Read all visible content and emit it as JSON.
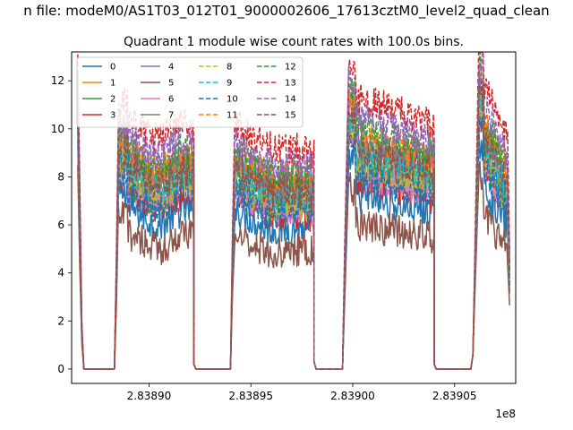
{
  "figure": {
    "suptitle": "n file: modeM0/AS1T03_012T01_9000002606_17613cztM0_level2_quad_clean",
    "title": "Quadrant 1 module wise count rates with 100.0s bins.",
    "offset_label": "1e8"
  },
  "chart_data": {
    "type": "line",
    "title": "Quadrant 1 module wise count rates with 100.0s bins.",
    "xlabel": "",
    "ylabel": "",
    "x_scale_factor": "1e8",
    "xlim": [
      2.838862,
      2.83908
    ],
    "ylim": [
      -0.6,
      13.2
    ],
    "xticks": [
      2.8389,
      2.83895,
      2.839,
      2.83905
    ],
    "xtick_labels": [
      "2.83890",
      "2.83895",
      "2.83900",
      "2.83905"
    ],
    "yticks": [
      0,
      2,
      4,
      6,
      8,
      10,
      12
    ],
    "ytick_labels": [
      "0",
      "2",
      "4",
      "6",
      "8",
      "10",
      "12"
    ],
    "grid": false,
    "legend_position": "top-left",
    "legend_columns": 4,
    "bin_seconds": 100.0,
    "segments": [
      {
        "start": 2.838865,
        "end": 2.838922
      },
      {
        "start": 2.838942,
        "end": 2.838981
      },
      {
        "start": 2.839002,
        "end": 2.83904
      },
      {
        "start": 2.839064,
        "end": 2.839076
      }
    ],
    "zero_gaps": [
      {
        "start": 2.838868,
        "end": 2.838883
      },
      {
        "start": 2.838922,
        "end": 2.838941
      },
      {
        "start": 2.838981,
        "end": 2.838996
      },
      {
        "start": 2.83904,
        "end": 2.839059
      }
    ],
    "series": [
      {
        "name": "0",
        "color": "#1f77b4",
        "dash": false,
        "level": 6.3
      },
      {
        "name": "1",
        "color": "#ff7f0e",
        "dash": false,
        "level": 8.2
      },
      {
        "name": "2",
        "color": "#2ca02c",
        "dash": false,
        "level": 7.3
      },
      {
        "name": "3",
        "color": "#d62728",
        "dash": false,
        "level": 7.0
      },
      {
        "name": "4",
        "color": "#9467bd",
        "dash": false,
        "level": 8.4
      },
      {
        "name": "5",
        "color": "#8c564b",
        "dash": false,
        "level": 5.3
      },
      {
        "name": "6",
        "color": "#e377c2",
        "dash": false,
        "level": 7.2
      },
      {
        "name": "7",
        "color": "#7f7f7f",
        "dash": false,
        "level": 7.8
      },
      {
        "name": "8",
        "color": "#bcbd22",
        "dash": true,
        "level": 7.4
      },
      {
        "name": "9",
        "color": "#17becf",
        "dash": true,
        "level": 7.8
      },
      {
        "name": "10",
        "color": "#1f77b4",
        "dash": true,
        "level": 7.0
      },
      {
        "name": "11",
        "color": "#ff7f0e",
        "dash": true,
        "level": 8.6
      },
      {
        "name": "12",
        "color": "#2ca02c",
        "dash": true,
        "level": 8.8
      },
      {
        "name": "13",
        "color": "#d62728",
        "dash": true,
        "level": 9.9
      },
      {
        "name": "14",
        "color": "#9467bd",
        "dash": true,
        "level": 9.2
      },
      {
        "name": "15",
        "color": "#8c564b",
        "dash": true,
        "level": 8.0
      }
    ]
  }
}
